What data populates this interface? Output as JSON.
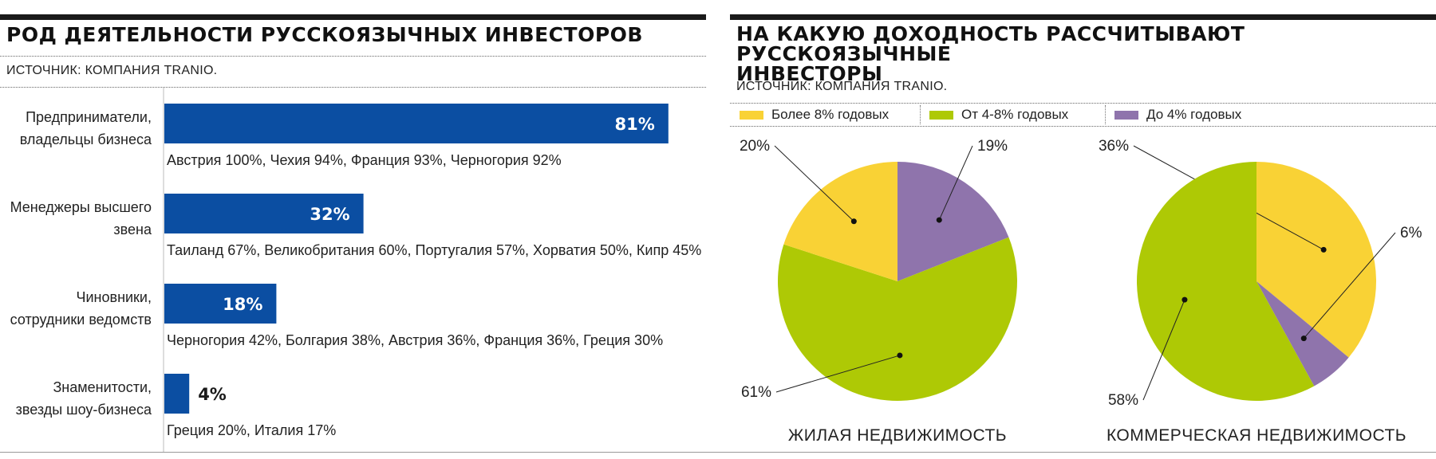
{
  "left": {
    "title": "РОД ДЕЯТЕЛЬНОСТИ РУССКОЯЗЫЧНЫХ ИНВЕСТОРОВ",
    "source": "ИСТОЧНИК: КОМПАНИЯ TRANIO."
  },
  "right": {
    "title_line1": "НА КАКУЮ ДОХОДНОСТЬ РАССЧИТЫВАЮТ РУССКОЯЗЫЧНЫЕ",
    "title_line2": "ИНВЕСТОРЫ",
    "source": "ИСТОЧНИК: КОМПАНИЯ TRANIO.",
    "legend": [
      {
        "label": "Более 8% годовых",
        "color": "#f9d235"
      },
      {
        "label": "От 4-8% годовых",
        "color": "#aec905"
      },
      {
        "label": "До 4% годовых",
        "color": "#8f74ac"
      }
    ]
  },
  "chart_data": [
    {
      "type": "bar",
      "orientation": "horizontal",
      "title": "РОД ДЕЯТЕЛЬНОСТИ РУССКОЯЗЫЧНЫХ ИНВЕСТОРОВ",
      "bar_color": "#0b4ea2",
      "xlim": [
        0,
        100
      ],
      "categories": [
        [
          "Предприниматели,",
          "владельцы бизнеса"
        ],
        [
          "Менеджеры высшего",
          "звена"
        ],
        [
          "Чиновники,",
          "сотрудники ведомств"
        ],
        [
          "Знаменитости,",
          "звезды шоу-бизнеса"
        ]
      ],
      "values": [
        81,
        32,
        18,
        4
      ],
      "value_labels": [
        "81%",
        "32%",
        "18%",
        "4%"
      ],
      "notes": [
        "Австрия 100%, Чехия 94%, Франция 93%, Черногория 92%",
        "Таиланд 67%, Великобритания 60%, Португалия 57%, Хорватия 50%, Кипр 45%",
        "Черногория 42%, Болгария 38%, Австрия 36%, Франция 36%, Греция 30%",
        "Греция 20%, Италия 17%"
      ]
    },
    {
      "type": "pie",
      "caption": "ЖИЛАЯ НЕДВИЖИМОСТЬ",
      "slices": [
        {
          "series": "До 4% годовых",
          "value": 19,
          "label": "19%",
          "color": "#8f74ac"
        },
        {
          "series": "От 4-8% годовых",
          "value": 61,
          "label": "61%",
          "color": "#aec905"
        },
        {
          "series": "Более 8% годовых",
          "value": 20,
          "label": "20%",
          "color": "#f9d235"
        }
      ]
    },
    {
      "type": "pie",
      "caption": "КОММЕРЧЕСКАЯ НЕДВИЖИМОСТЬ",
      "slices": [
        {
          "series": "Более 8% годовых",
          "value": 36,
          "label": "36%",
          "color": "#f9d235"
        },
        {
          "series": "До 4% годовых",
          "value": 6,
          "label": "6%",
          "color": "#8f74ac"
        },
        {
          "series": "От 4-8% годовых",
          "value": 58,
          "label": "58%",
          "color": "#aec905"
        }
      ]
    }
  ]
}
